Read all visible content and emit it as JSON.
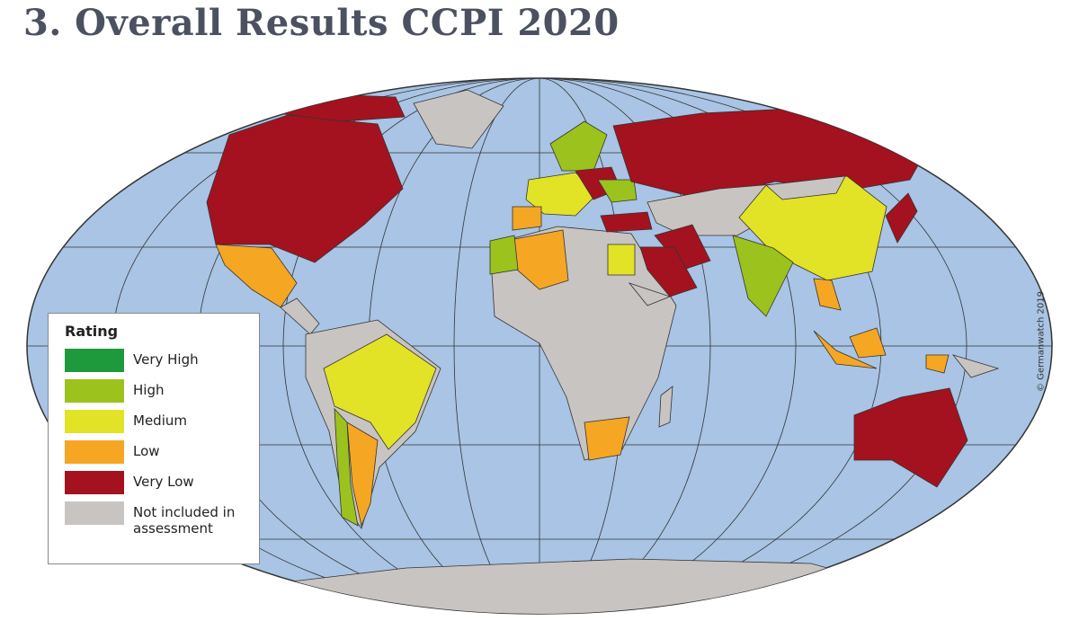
{
  "title": "3. Overall Results CCPI 2020",
  "legend": {
    "title": "Rating",
    "items": [
      {
        "label": "Very High",
        "color": "#1e9a3c"
      },
      {
        "label": "High",
        "color": "#9cc21d"
      },
      {
        "label": "Medium",
        "color": "#e2e227"
      },
      {
        "label": "Low",
        "color": "#f5a623"
      },
      {
        "label": "Very Low",
        "color": "#a4121f"
      },
      {
        "label": "Not included in assessment",
        "color": "#c8c4c2"
      }
    ]
  },
  "copyright": "© Germanwatch 2019"
}
